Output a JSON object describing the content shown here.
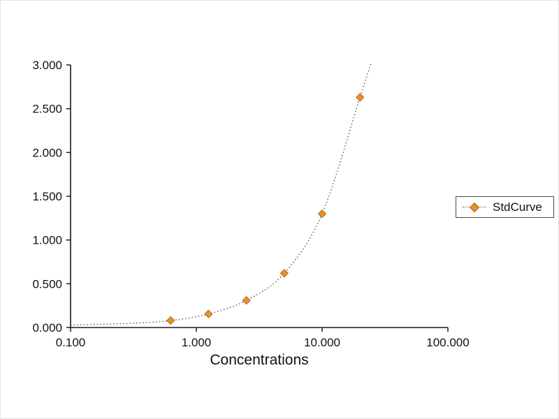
{
  "chart_data": {
    "type": "scatter",
    "title": "",
    "xlabel": "Concentrations",
    "ylabel": "",
    "x_scale": "log",
    "xlim": [
      0.1,
      100
    ],
    "ylim": [
      0,
      3
    ],
    "grid": false,
    "x_ticks": [
      {
        "v": 0.1,
        "label": "0.100"
      },
      {
        "v": 1,
        "label": "1.000"
      },
      {
        "v": 10,
        "label": "10.000"
      },
      {
        "v": 100,
        "label": "100.000"
      }
    ],
    "y_ticks": [
      {
        "v": 0,
        "label": "0.000"
      },
      {
        "v": 0.5,
        "label": "0.500"
      },
      {
        "v": 1,
        "label": "1.000"
      },
      {
        "v": 1.5,
        "label": "1.500"
      },
      {
        "v": 2,
        "label": "2.000"
      },
      {
        "v": 2.5,
        "label": "2.500"
      },
      {
        "v": 3,
        "label": "3.000"
      }
    ],
    "series": [
      {
        "name": "StdCurve",
        "marker": "diamond",
        "marker_color": "#e8912c",
        "marker_edge_color": "#b36b1e",
        "line_style": "dotted",
        "line_color": "#555555",
        "x": [
          0.625,
          1.25,
          2.5,
          5,
          10,
          20
        ],
        "y": [
          0.08,
          0.155,
          0.31,
          0.62,
          1.3,
          2.63
        ]
      }
    ],
    "fit_curve": [
      [
        0.1,
        0.03
      ],
      [
        0.3,
        0.048
      ],
      [
        0.625,
        0.08
      ],
      [
        1.25,
        0.155
      ],
      [
        2.5,
        0.31
      ],
      [
        5,
        0.62
      ],
      [
        10,
        1.3
      ],
      [
        20,
        2.63
      ],
      [
        24.5,
        3.02
      ]
    ],
    "legend": {
      "position": "right",
      "label": "StdCurve"
    }
  }
}
